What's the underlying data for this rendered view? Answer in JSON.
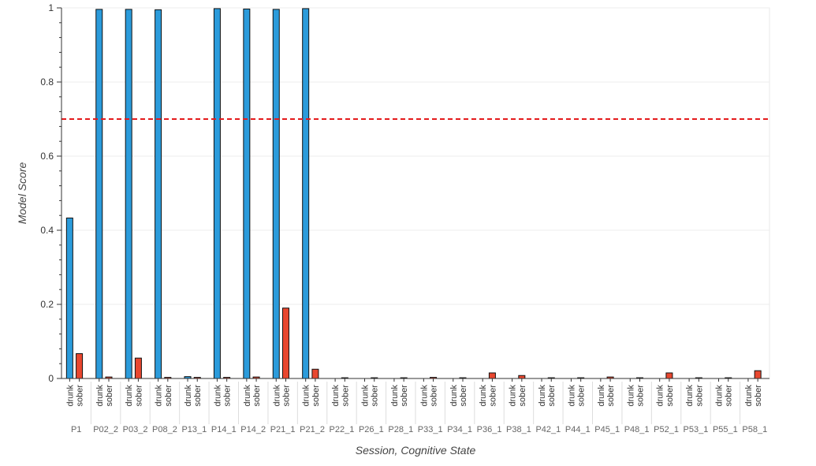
{
  "chart_data": {
    "type": "bar",
    "title": "",
    "xlabel": "Session, Cognitive State",
    "ylabel": "Model Score",
    "ylim": [
      0,
      1
    ],
    "yticks": [
      "0",
      "0.2",
      "0.4",
      "0.6",
      "0.8",
      "1"
    ],
    "grid": true,
    "threshold": 0.7,
    "threshold_color": "#e41a1c",
    "factors": [
      "drunk",
      "sober"
    ],
    "colors": {
      "drunk": "#2b9bdb",
      "sober": "#e8472f"
    },
    "categories": [
      "P1",
      "P02_2",
      "P03_2",
      "P08_2",
      "P13_1",
      "P14_1",
      "P14_2",
      "P21_1",
      "P21_2",
      "P22_1",
      "P26_1",
      "P28_1",
      "P33_1",
      "P34_1",
      "P36_1",
      "P38_1",
      "P42_1",
      "P44_1",
      "P45_1",
      "P48_1",
      "P52_1",
      "P53_1",
      "P55_1",
      "P58_1"
    ],
    "series": [
      {
        "name": "drunk",
        "values": [
          0.433,
          0.996,
          0.996,
          0.995,
          0.005,
          0.998,
          0.997,
          0.996,
          0.998,
          0,
          0,
          0,
          0,
          0,
          0,
          0,
          0,
          0,
          0,
          0,
          0,
          0,
          0,
          0
        ]
      },
      {
        "name": "sober",
        "values": [
          0.067,
          0.004,
          0.055,
          0.003,
          0.003,
          0.003,
          0.004,
          0.19,
          0.025,
          0.002,
          0.002,
          0.002,
          0.003,
          0.002,
          0.015,
          0.008,
          0.002,
          0.002,
          0.004,
          0.002,
          0.015,
          0.002,
          0.002,
          0.021
        ]
      }
    ]
  }
}
